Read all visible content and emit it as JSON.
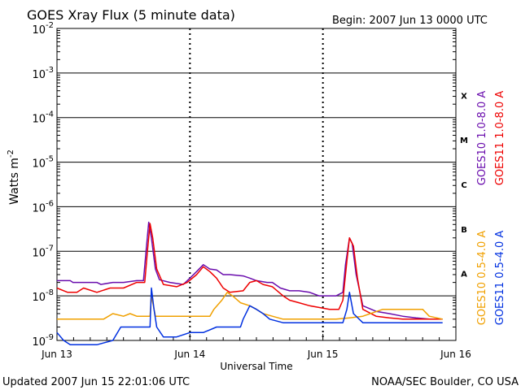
{
  "header": {
    "title": "GOES Xray Flux (5 minute data)",
    "begin_label": "Begin:  2007 Jun 13 0000 UTC"
  },
  "footer": {
    "updated": "Updated 2007 Jun 15 22:01:06 UTC",
    "credit": "NOAA/SEC Boulder, CO USA"
  },
  "chart_data": {
    "type": "line",
    "title": "GOES Xray Flux (5 minute data)",
    "xlabel": "Universal Time",
    "ylabel": "Watts m",
    "ylabel_superscript": "-2",
    "y_scale": "log",
    "ylim": [
      1e-09,
      0.01
    ],
    "xlim": [
      "2007-06-13",
      "2007-06-16"
    ],
    "x_ticks": [
      "Jun 13",
      "Jun 14",
      "Jun 15",
      "Jun 16"
    ],
    "y_ticks": [
      {
        "base": "10",
        "exp": "-2"
      },
      {
        "base": "10",
        "exp": "-3"
      },
      {
        "base": "10",
        "exp": "-4"
      },
      {
        "base": "10",
        "exp": "-5"
      },
      {
        "base": "10",
        "exp": "-6"
      },
      {
        "base": "10",
        "exp": "-7"
      },
      {
        "base": "10",
        "exp": "-8"
      },
      {
        "base": "10",
        "exp": "-9"
      }
    ],
    "flare_classes": [
      "X",
      "M",
      "C",
      "B",
      "A"
    ],
    "grid": "horizontal lines at each decade, dotted vertical lines at day boundaries",
    "legend_placement": "right, vertical",
    "series": [
      {
        "name": "GOES10 1.0-8.0 A",
        "color": "#6a0dad",
        "points": [
          [
            0,
            2.2e-08
          ],
          [
            0.1,
            2.2e-08
          ],
          [
            0.12,
            2e-08
          ],
          [
            0.3,
            2e-08
          ],
          [
            0.33,
            1.8e-08
          ],
          [
            0.42,
            2e-08
          ],
          [
            0.5,
            2e-08
          ],
          [
            0.6,
            2.2e-08
          ],
          [
            0.65,
            2.2e-08
          ],
          [
            0.67,
            1e-07
          ],
          [
            0.69,
            4.5e-07
          ],
          [
            0.71,
            2e-07
          ],
          [
            0.74,
            4e-08
          ],
          [
            0.77,
            2.3e-08
          ],
          [
            0.85,
            2e-08
          ],
          [
            0.95,
            1.8e-08
          ],
          [
            1.0,
            2.5e-08
          ],
          [
            1.05,
            3.5e-08
          ],
          [
            1.1,
            5e-08
          ],
          [
            1.15,
            4e-08
          ],
          [
            1.2,
            3.8e-08
          ],
          [
            1.25,
            3e-08
          ],
          [
            1.3,
            3e-08
          ],
          [
            1.4,
            2.8e-08
          ],
          [
            1.45,
            2.5e-08
          ],
          [
            1.5,
            2.2e-08
          ],
          [
            1.58,
            2e-08
          ],
          [
            1.62,
            2e-08
          ],
          [
            1.68,
            1.5e-08
          ],
          [
            1.75,
            1.3e-08
          ],
          [
            1.82,
            1.3e-08
          ],
          [
            1.9,
            1.2e-08
          ],
          [
            1.97,
            1e-08
          ],
          [
            2.0,
            1e-08
          ],
          [
            2.05,
            1e-08
          ],
          [
            2.1,
            1e-08
          ],
          [
            2.15,
            1.2e-08
          ],
          [
            2.17,
            5e-08
          ],
          [
            2.2,
            2e-07
          ],
          [
            2.22,
            1.5e-07
          ],
          [
            2.25,
            3e-08
          ],
          [
            2.3,
            6e-09
          ],
          [
            2.4,
            4.5e-09
          ],
          [
            2.5,
            4e-09
          ],
          [
            2.6,
            3.5e-09
          ],
          [
            2.7,
            3.2e-09
          ],
          [
            2.8,
            3e-09
          ],
          [
            2.9,
            3e-09
          ]
        ]
      },
      {
        "name": "GOES11 1.0-8.0 A",
        "color": "#ee0000",
        "points": [
          [
            0,
            1.5e-08
          ],
          [
            0.08,
            1.2e-08
          ],
          [
            0.15,
            1.2e-08
          ],
          [
            0.2,
            1.5e-08
          ],
          [
            0.3,
            1.2e-08
          ],
          [
            0.4,
            1.5e-08
          ],
          [
            0.5,
            1.5e-08
          ],
          [
            0.6,
            2e-08
          ],
          [
            0.66,
            2e-08
          ],
          [
            0.68,
            1e-07
          ],
          [
            0.7,
            4.2e-07
          ],
          [
            0.72,
            2e-07
          ],
          [
            0.75,
            4e-08
          ],
          [
            0.8,
            1.8e-08
          ],
          [
            0.9,
            1.6e-08
          ],
          [
            0.98,
            2e-08
          ],
          [
            1.05,
            3e-08
          ],
          [
            1.1,
            4.5e-08
          ],
          [
            1.15,
            3.5e-08
          ],
          [
            1.2,
            2.5e-08
          ],
          [
            1.25,
            1.5e-08
          ],
          [
            1.3,
            1.2e-08
          ],
          [
            1.4,
            1.3e-08
          ],
          [
            1.45,
            2e-08
          ],
          [
            1.5,
            2.2e-08
          ],
          [
            1.55,
            1.8e-08
          ],
          [
            1.62,
            1.6e-08
          ],
          [
            1.7,
            1e-08
          ],
          [
            1.75,
            8e-09
          ],
          [
            1.82,
            7e-09
          ],
          [
            1.9,
            6e-09
          ],
          [
            1.97,
            5.5e-09
          ],
          [
            2.05,
            5e-09
          ],
          [
            2.12,
            5e-09
          ],
          [
            2.15,
            8e-09
          ],
          [
            2.18,
            6e-08
          ],
          [
            2.2,
            2e-07
          ],
          [
            2.23,
            1.3e-07
          ],
          [
            2.26,
            2.5e-08
          ],
          [
            2.3,
            5e-09
          ],
          [
            2.4,
            3.5e-09
          ],
          [
            2.5,
            3.2e-09
          ],
          [
            2.6,
            3e-09
          ],
          [
            2.7,
            3e-09
          ],
          [
            2.8,
            3e-09
          ],
          [
            2.9,
            3e-09
          ]
        ]
      },
      {
        "name": "GOES10 0.5-4.0 A",
        "color": "#f0a000",
        "points": [
          [
            0,
            3e-09
          ],
          [
            0.35,
            3e-09
          ],
          [
            0.42,
            4e-09
          ],
          [
            0.5,
            3.5e-09
          ],
          [
            0.55,
            4e-09
          ],
          [
            0.6,
            3.5e-09
          ],
          [
            0.7,
            3.5e-09
          ],
          [
            0.71,
            1e-08
          ],
          [
            0.74,
            3.5e-09
          ],
          [
            0.8,
            3.5e-09
          ],
          [
            1.0,
            3.5e-09
          ],
          [
            1.1,
            3.5e-09
          ],
          [
            1.15,
            3.5e-09
          ],
          [
            1.18,
            5e-09
          ],
          [
            1.24,
            8e-09
          ],
          [
            1.28,
            1.2e-08
          ],
          [
            1.32,
            1e-08
          ],
          [
            1.38,
            7e-09
          ],
          [
            1.45,
            6e-09
          ],
          [
            1.5,
            5e-09
          ],
          [
            1.55,
            4e-09
          ],
          [
            1.62,
            3.5e-09
          ],
          [
            1.7,
            3e-09
          ],
          [
            1.8,
            3e-09
          ],
          [
            1.9,
            3e-09
          ],
          [
            2.0,
            3e-09
          ],
          [
            2.1,
            3e-09
          ],
          [
            2.2,
            3.2e-09
          ],
          [
            2.3,
            3.5e-09
          ],
          [
            2.45,
            5e-09
          ],
          [
            2.6,
            5e-09
          ],
          [
            2.75,
            5e-09
          ],
          [
            2.8,
            3.5e-09
          ],
          [
            2.9,
            3e-09
          ]
        ]
      },
      {
        "name": "GOES11 0.5-4.0 A",
        "color": "#0030e0",
        "points": [
          [
            0,
            1.5e-09
          ],
          [
            0.05,
            1e-09
          ],
          [
            0.1,
            8e-10
          ],
          [
            0.2,
            8e-10
          ],
          [
            0.3,
            8e-10
          ],
          [
            0.42,
            1e-09
          ],
          [
            0.48,
            2e-09
          ],
          [
            0.55,
            2e-09
          ],
          [
            0.6,
            2e-09
          ],
          [
            0.65,
            2e-09
          ],
          [
            0.7,
            2e-09
          ],
          [
            0.71,
            1.5e-08
          ],
          [
            0.73,
            5e-09
          ],
          [
            0.75,
            2e-09
          ],
          [
            0.8,
            1.2e-09
          ],
          [
            0.9,
            1.2e-09
          ],
          [
            1.0,
            1.5e-09
          ],
          [
            1.1,
            1.5e-09
          ],
          [
            1.2,
            2e-09
          ],
          [
            1.3,
            2e-09
          ],
          [
            1.38,
            2e-09
          ],
          [
            1.4,
            3e-09
          ],
          [
            1.45,
            6e-09
          ],
          [
            1.5,
            5e-09
          ],
          [
            1.55,
            4e-09
          ],
          [
            1.6,
            3e-09
          ],
          [
            1.7,
            2.5e-09
          ],
          [
            1.8,
            2.5e-09
          ],
          [
            1.9,
            2.5e-09
          ],
          [
            2.0,
            2.5e-09
          ],
          [
            2.1,
            2.5e-09
          ],
          [
            2.15,
            2.5e-09
          ],
          [
            2.18,
            5e-09
          ],
          [
            2.2,
            1.2e-08
          ],
          [
            2.23,
            4e-09
          ],
          [
            2.3,
            2.5e-09
          ],
          [
            2.5,
            2.5e-09
          ],
          [
            2.7,
            2.5e-09
          ],
          [
            2.9,
            2.5e-09
          ]
        ]
      }
    ]
  }
}
